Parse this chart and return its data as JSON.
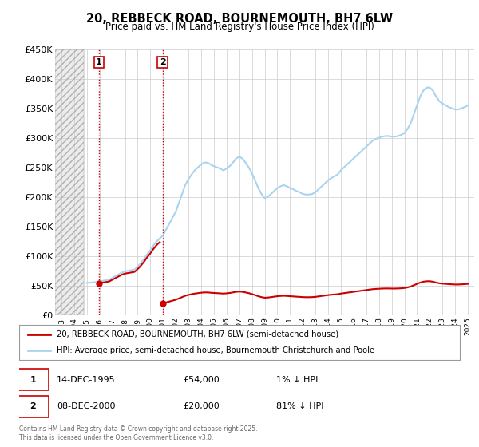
{
  "title": "20, REBBECK ROAD, BOURNEMOUTH, BH7 6LW",
  "subtitle": "Price paid vs. HM Land Registry's House Price Index (HPI)",
  "ylim": [
    0,
    450000
  ],
  "yticks": [
    0,
    50000,
    100000,
    150000,
    200000,
    250000,
    300000,
    350000,
    400000,
    450000
  ],
  "ytick_labels": [
    "£0",
    "£50K",
    "£100K",
    "£150K",
    "£200K",
    "£250K",
    "£300K",
    "£350K",
    "£400K",
    "£450K"
  ],
  "hpi_color": "#a8d4f0",
  "price_color": "#cc0000",
  "background_color": "#ffffff",
  "grid_color": "#cccccc",
  "sale1_year": 1995.96,
  "sale1_price": 54000,
  "sale2_year": 2000.96,
  "sale2_price": 20000,
  "sale1_date": "14-DEC-1995",
  "sale1_amount": "£54,000",
  "sale1_hpi": "1% ↓ HPI",
  "sale2_date": "08-DEC-2000",
  "sale2_amount": "£20,000",
  "sale2_hpi": "81% ↓ HPI",
  "legend_line1": "20, REBBECK ROAD, BOURNEMOUTH, BH7 6LW (semi-detached house)",
  "legend_line2": "HPI: Average price, semi-detached house, Bournemouth Christchurch and Poole",
  "footnote": "Contains HM Land Registry data © Crown copyright and database right 2025.\nThis data is licensed under the Open Government Licence v3.0."
}
